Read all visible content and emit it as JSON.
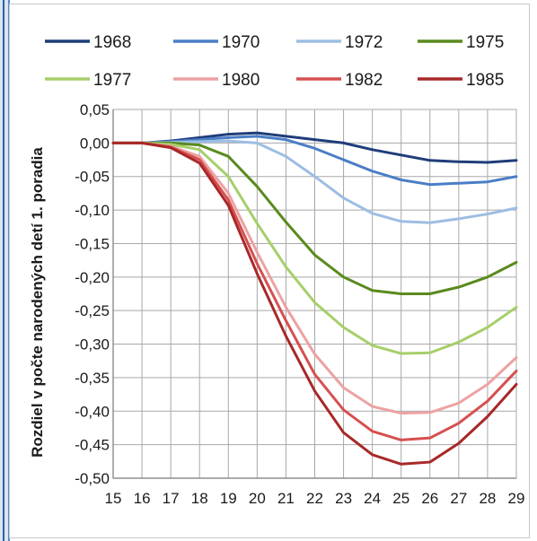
{
  "chart_data": {
    "type": "line",
    "title": "",
    "xlabel": "",
    "ylabel": "Rozdiel v počte narodených detí 1. poradia",
    "x": [
      15,
      16,
      17,
      18,
      19,
      20,
      21,
      22,
      23,
      24,
      25,
      26,
      27,
      28,
      29
    ],
    "xlim": [
      15,
      29
    ],
    "ylim": [
      -0.5,
      0.05
    ],
    "yticks": [
      "0,05",
      "0,00",
      "-0,05",
      "-0,10",
      "-0,15",
      "-0,20",
      "-0,25",
      "-0,30",
      "-0,35",
      "-0,40",
      "-0,45",
      "-0,50"
    ],
    "ytick_values": [
      0.05,
      0.0,
      -0.05,
      -0.1,
      -0.15,
      -0.2,
      -0.25,
      -0.3,
      -0.35,
      -0.4,
      -0.45,
      -0.5
    ],
    "xticks": [
      "15",
      "16",
      "17",
      "18",
      "19",
      "20",
      "21",
      "22",
      "23",
      "24",
      "25",
      "26",
      "27",
      "28",
      "29"
    ],
    "grid": true,
    "legend_position": "top",
    "series": [
      {
        "name": "1968",
        "color": "#1f3d7a",
        "values": [
          0,
          0,
          0.003,
          0.008,
          0.013,
          0.015,
          0.01,
          0.005,
          0,
          -0.01,
          -0.018,
          -0.026,
          -0.028,
          -0.029,
          -0.026
        ]
      },
      {
        "name": "1970",
        "color": "#4a7ec6",
        "values": [
          0,
          0,
          0.002,
          0.005,
          0.008,
          0.01,
          0.005,
          -0.008,
          -0.025,
          -0.042,
          -0.055,
          -0.062,
          -0.06,
          -0.058,
          -0.05
        ]
      },
      {
        "name": "1972",
        "color": "#9dbde3",
        "values": [
          0,
          0,
          0.001,
          0.002,
          0.003,
          0.0,
          -0.02,
          -0.05,
          -0.082,
          -0.105,
          -0.117,
          -0.119,
          -0.113,
          -0.106,
          -0.097
        ]
      },
      {
        "name": "1975",
        "color": "#5a8a1e",
        "values": [
          0,
          0,
          0.0,
          -0.003,
          -0.02,
          -0.065,
          -0.118,
          -0.167,
          -0.2,
          -0.22,
          -0.225,
          -0.225,
          -0.215,
          -0.2,
          -0.178
        ]
      },
      {
        "name": "1977",
        "color": "#a6cf6a",
        "values": [
          0,
          0,
          -0.002,
          -0.01,
          -0.05,
          -0.12,
          -0.185,
          -0.238,
          -0.275,
          -0.302,
          -0.314,
          -0.313,
          -0.297,
          -0.275,
          -0.245
        ]
      },
      {
        "name": "1980",
        "color": "#eda2a2",
        "values": [
          0,
          0,
          -0.005,
          -0.02,
          -0.075,
          -0.163,
          -0.245,
          -0.315,
          -0.365,
          -0.393,
          -0.403,
          -0.402,
          -0.388,
          -0.36,
          -0.32
        ]
      },
      {
        "name": "1982",
        "color": "#d65050",
        "values": [
          0,
          0,
          -0.006,
          -0.025,
          -0.085,
          -0.18,
          -0.265,
          -0.345,
          -0.398,
          -0.43,
          -0.443,
          -0.44,
          -0.418,
          -0.385,
          -0.34
        ]
      },
      {
        "name": "1985",
        "color": "#a82828",
        "values": [
          0,
          0,
          -0.007,
          -0.03,
          -0.093,
          -0.195,
          -0.288,
          -0.37,
          -0.432,
          -0.465,
          -0.479,
          -0.476,
          -0.448,
          -0.408,
          -0.36
        ]
      }
    ]
  }
}
